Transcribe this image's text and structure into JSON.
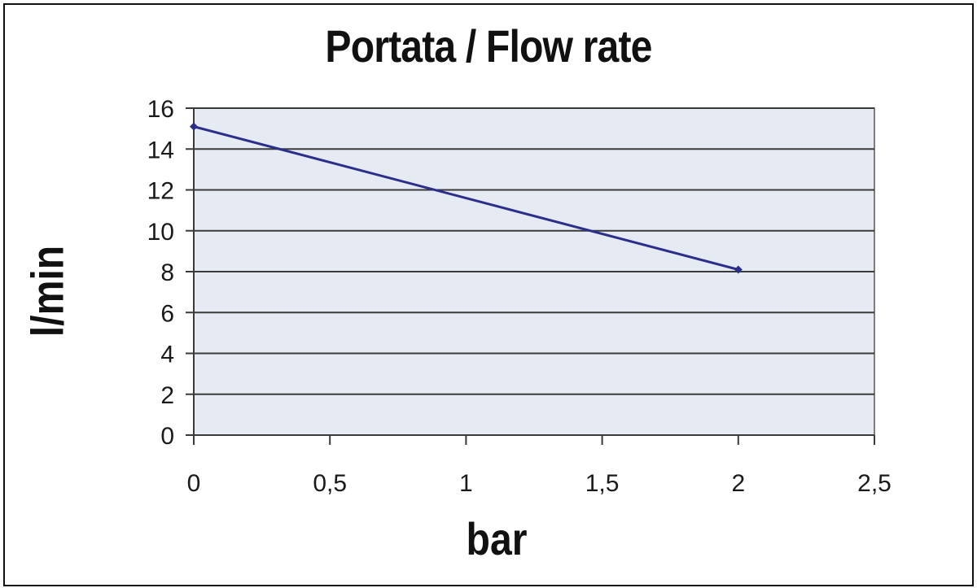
{
  "chart_data": {
    "type": "line",
    "title": "Portata / Flow rate",
    "xlabel": "bar",
    "ylabel": "l/min",
    "x_ticks": [
      "0",
      "0,5",
      "1",
      "1,5",
      "2",
      "2,5"
    ],
    "y_ticks": [
      "0",
      "2",
      "4",
      "6",
      "8",
      "10",
      "12",
      "14",
      "16"
    ],
    "xlim": [
      0,
      2.5
    ],
    "ylim": [
      0,
      16
    ],
    "grid": "horizontal",
    "series": [
      {
        "x": [
          0,
          2
        ],
        "y": [
          15.1,
          8.1
        ],
        "color": "#2b2f8a"
      }
    ],
    "plot_background": "#e6eaf3"
  }
}
